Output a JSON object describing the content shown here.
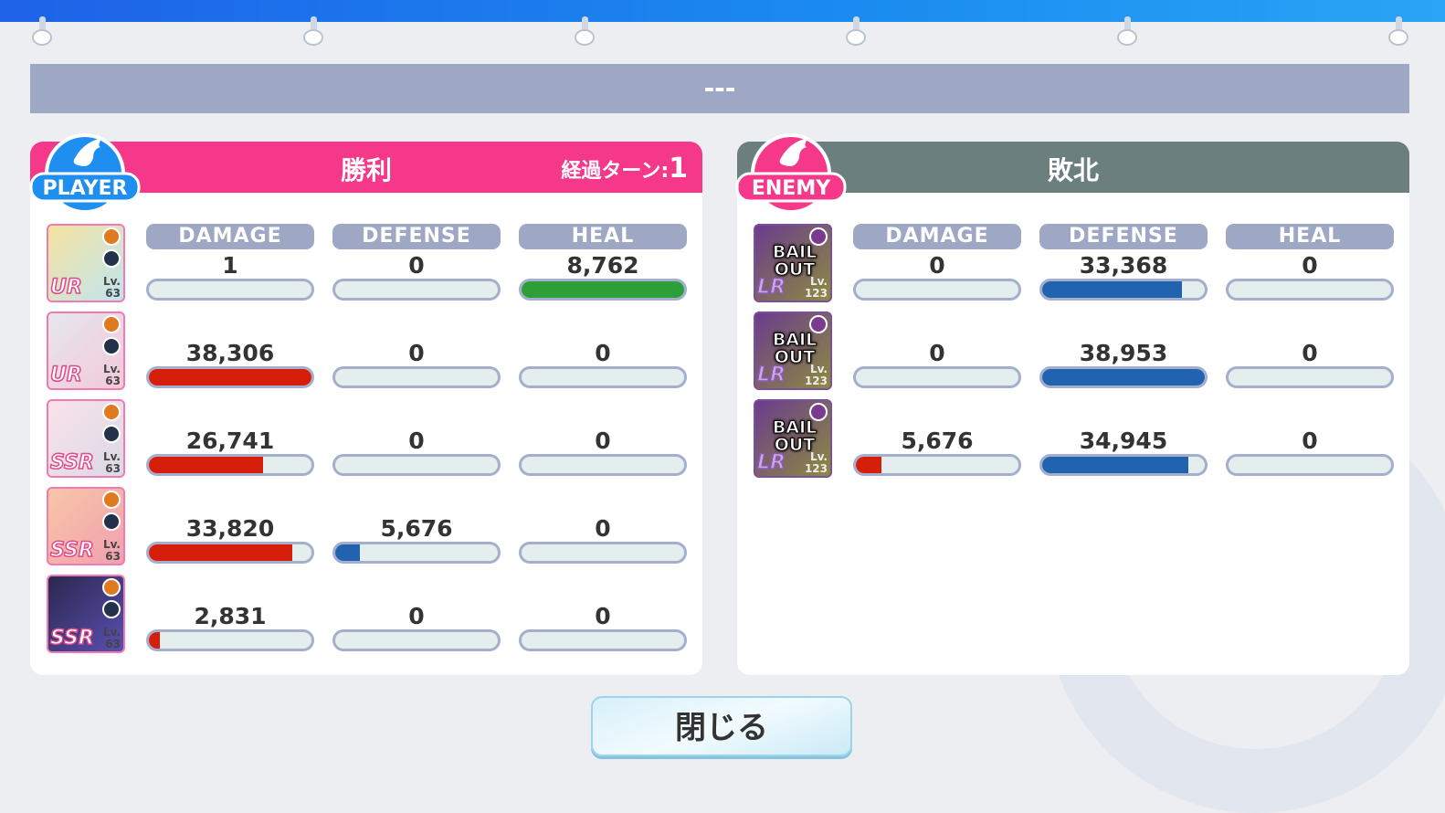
{
  "title": "---",
  "colors": {
    "player_header": "#f5388a",
    "enemy_header": "#6b807e",
    "damage": "#d51f0a",
    "defense": "#2263b0",
    "heal": "#2e9e38",
    "badge_player": "#1e8ef0",
    "badge_enemy": "#f5388a"
  },
  "player": {
    "badge": "PLAYER",
    "result": "勝利",
    "turn_label": "経過ターン:",
    "turn_value": "1",
    "labels": [
      "DAMAGE",
      "DEFENSE",
      "HEAL"
    ],
    "rows": [
      {
        "rarity": "UR",
        "level": "63",
        "damage": "1",
        "damage_fill": 0,
        "defense": "0",
        "defense_fill": 0,
        "heal": "8,762",
        "heal_fill": 1.0
      },
      {
        "rarity": "UR",
        "level": "63",
        "damage": "38,306",
        "damage_fill": 1.0,
        "defense": "0",
        "defense_fill": 0,
        "heal": "0",
        "heal_fill": 0
      },
      {
        "rarity": "SSR",
        "level": "63",
        "damage": "26,741",
        "damage_fill": 0.7,
        "defense": "0",
        "defense_fill": 0,
        "heal": "0",
        "heal_fill": 0
      },
      {
        "rarity": "SSR",
        "level": "63",
        "damage": "33,820",
        "damage_fill": 0.88,
        "defense": "5,676",
        "defense_fill": 0.15,
        "heal": "0",
        "heal_fill": 0
      },
      {
        "rarity": "SSR",
        "level": "63",
        "damage": "2,831",
        "damage_fill": 0.07,
        "defense": "0",
        "defense_fill": 0,
        "heal": "0",
        "heal_fill": 0
      }
    ]
  },
  "enemy": {
    "badge": "ENEMY",
    "result": "敗北",
    "labels": [
      "DAMAGE",
      "DEFENSE",
      "HEAL"
    ],
    "rows": [
      {
        "bail": "BAIL OUT",
        "rarity": "LR",
        "level": "123",
        "damage": "0",
        "damage_fill": 0,
        "defense": "33,368",
        "defense_fill": 0.86,
        "heal": "0",
        "heal_fill": 0
      },
      {
        "bail": "BAIL OUT",
        "rarity": "LR",
        "level": "123",
        "damage": "0",
        "damage_fill": 0,
        "defense": "38,953",
        "defense_fill": 1.0,
        "heal": "0",
        "heal_fill": 0
      },
      {
        "bail": "BAIL OUT",
        "rarity": "LR",
        "level": "123",
        "damage": "5,676",
        "damage_fill": 0.16,
        "defense": "34,945",
        "defense_fill": 0.9,
        "heal": "0",
        "heal_fill": 0
      }
    ]
  },
  "close_button": "閉じる"
}
